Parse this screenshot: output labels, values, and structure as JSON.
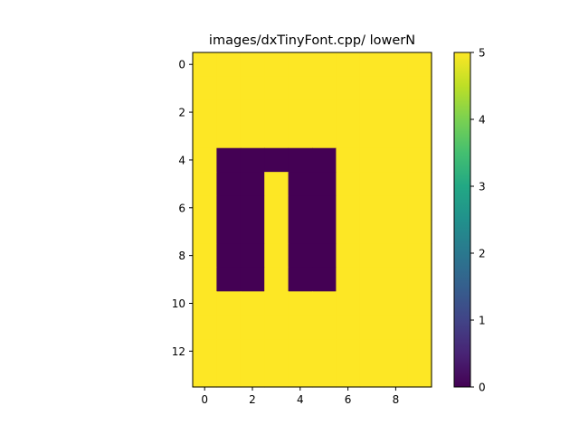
{
  "chart_data": {
    "type": "heatmap",
    "title": "images/dxTinyFont.cpp/ lowerN",
    "xlabel": "",
    "ylabel": "",
    "colormap": "viridis",
    "background_color": "#fde725",
    "low_color": "#440154",
    "rows": 14,
    "cols": 10,
    "matrix": [
      [
        5,
        5,
        5,
        5,
        5,
        5,
        5,
        5,
        5,
        5
      ],
      [
        5,
        5,
        5,
        5,
        5,
        5,
        5,
        5,
        5,
        5
      ],
      [
        5,
        5,
        5,
        5,
        5,
        5,
        5,
        5,
        5,
        5
      ],
      [
        5,
        5,
        5,
        5,
        5,
        5,
        5,
        5,
        5,
        5
      ],
      [
        5,
        0,
        0,
        0,
        0,
        0,
        5,
        5,
        5,
        5
      ],
      [
        5,
        0,
        0,
        5,
        0,
        0,
        5,
        5,
        5,
        5
      ],
      [
        5,
        0,
        0,
        5,
        0,
        0,
        5,
        5,
        5,
        5
      ],
      [
        5,
        0,
        0,
        5,
        0,
        0,
        5,
        5,
        5,
        5
      ],
      [
        5,
        0,
        0,
        5,
        0,
        0,
        5,
        5,
        5,
        5
      ],
      [
        5,
        0,
        0,
        5,
        0,
        0,
        5,
        5,
        5,
        5
      ],
      [
        5,
        5,
        5,
        5,
        5,
        5,
        5,
        5,
        5,
        5
      ],
      [
        5,
        5,
        5,
        5,
        5,
        5,
        5,
        5,
        5,
        5
      ],
      [
        5,
        5,
        5,
        5,
        5,
        5,
        5,
        5,
        5,
        5
      ],
      [
        5,
        5,
        5,
        5,
        5,
        5,
        5,
        5,
        5,
        5
      ]
    ],
    "x_ticks": [
      "0",
      "2",
      "4",
      "6",
      "8"
    ],
    "y_ticks": [
      "0",
      "2",
      "4",
      "6",
      "8",
      "10",
      "12"
    ],
    "colorbar": {
      "range": [
        0,
        5
      ],
      "ticks": [
        "0",
        "1",
        "2",
        "3",
        "4",
        "5"
      ]
    }
  }
}
